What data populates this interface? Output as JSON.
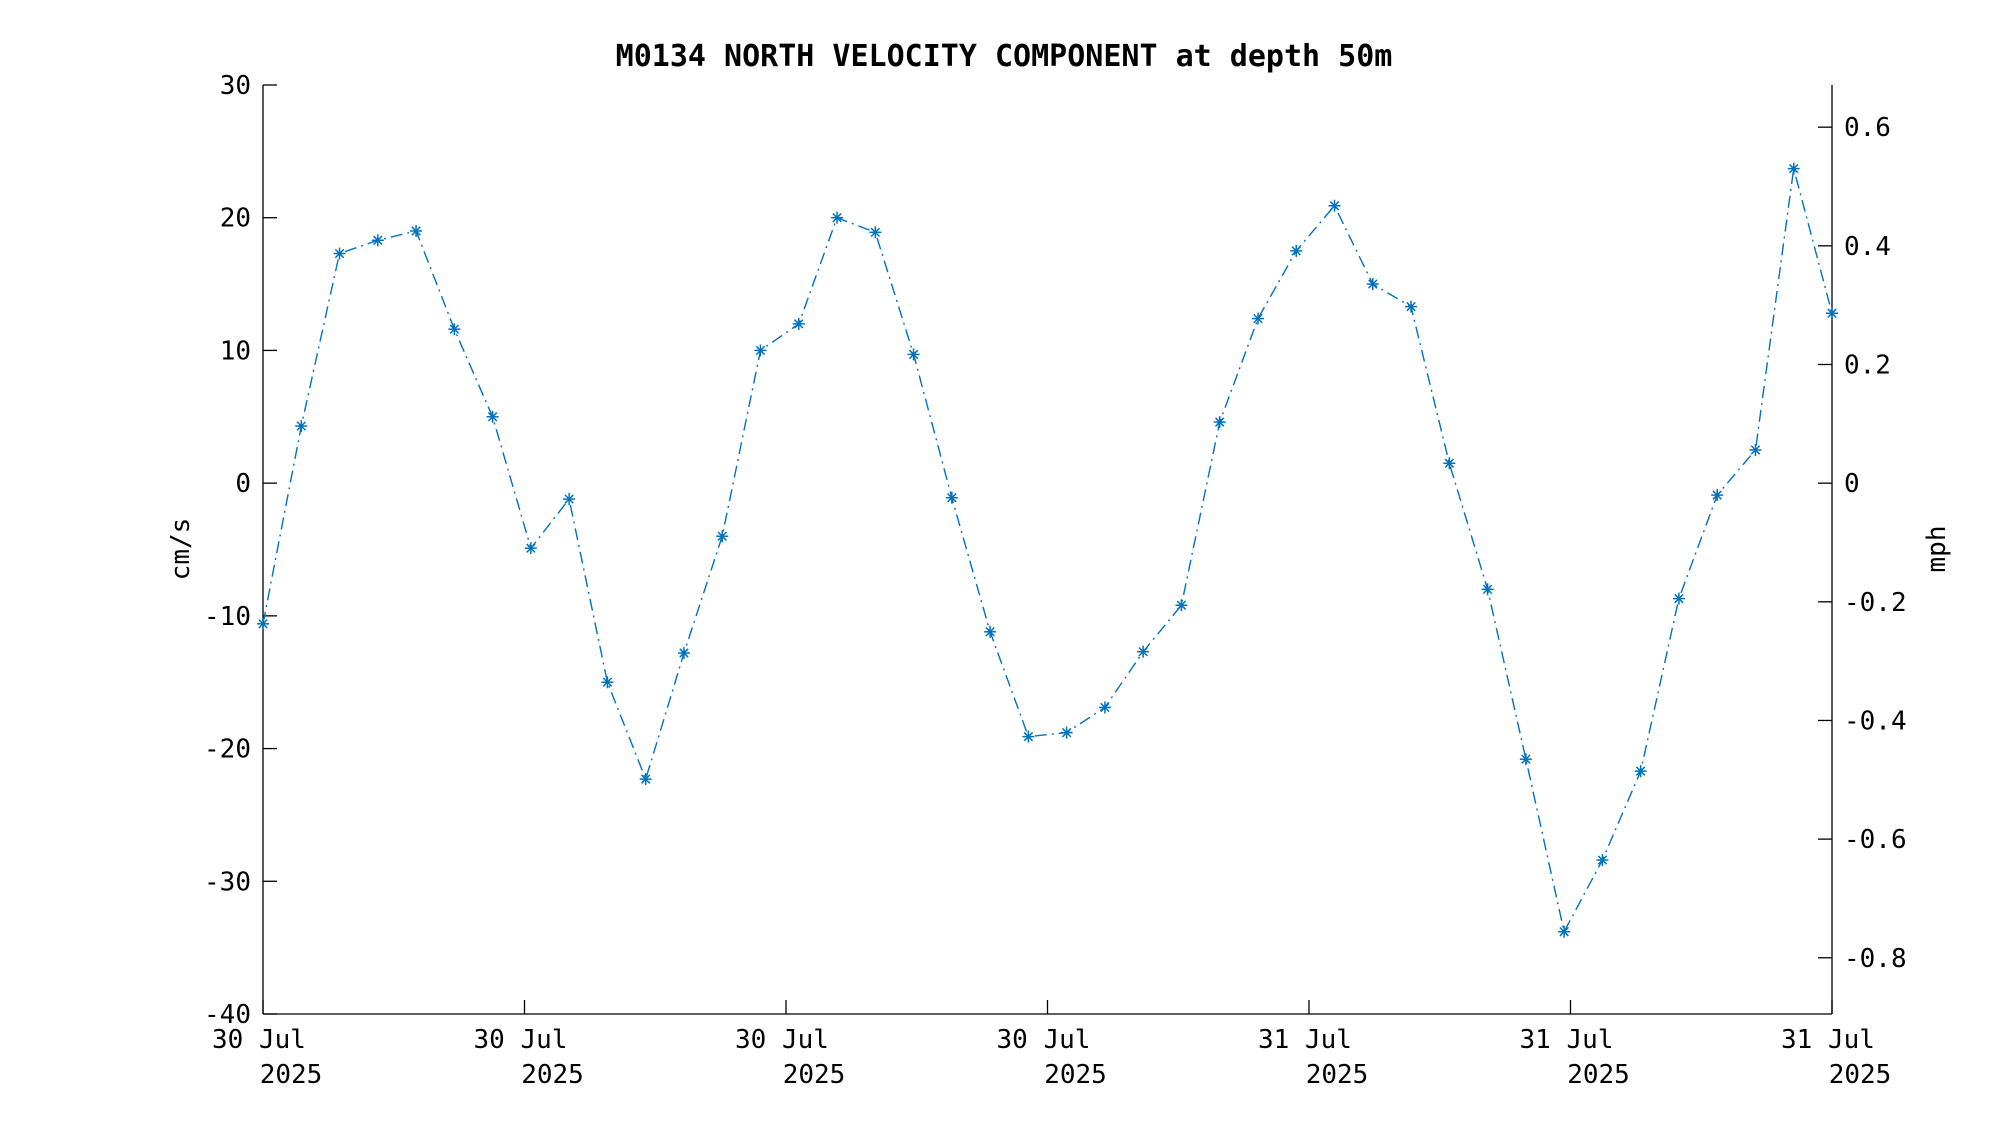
{
  "chart_data": {
    "type": "line",
    "title": "M0134 NORTH VELOCITY COMPONENT at depth 50m",
    "ylabel": "cm/s",
    "y2label": "mph",
    "ylim": [
      -40,
      30
    ],
    "yticks": [
      "30",
      "20",
      "10",
      "0",
      "-10",
      "-20",
      "-30",
      "-40"
    ],
    "y2ticks": [
      "0.6",
      "0.4",
      "0.2",
      "0",
      "-0.2",
      "-0.4",
      "-0.6",
      "-0.8"
    ],
    "xticks": [
      {
        "line1": "30 Jul",
        "line2": "2025"
      },
      {
        "line1": "30 Jul",
        "line2": "2025"
      },
      {
        "line1": "30 Jul",
        "line2": "2025"
      },
      {
        "line1": "30 Jul",
        "line2": "2025"
      },
      {
        "line1": "31 Jul",
        "line2": "2025"
      },
      {
        "line1": "31 Jul",
        "line2": "2025"
      },
      {
        "line1": "31 Jul",
        "line2": "2025"
      }
    ],
    "grid": false,
    "marker": "asterisk",
    "line_style": "dash-dot",
    "series_color": "#0072BD",
    "series": [
      {
        "values": [
          -10.6,
          4.3,
          17.3,
          18.3,
          19.0,
          11.6,
          5.0,
          -4.9,
          -1.2,
          -15.0,
          -22.3,
          -12.8,
          -4.0,
          10.0,
          12.0,
          20.0,
          18.9,
          9.7,
          -1.1,
          -11.2,
          -19.1,
          -18.8,
          -16.9,
          -12.7,
          -9.2,
          4.6,
          12.4,
          17.5,
          20.9,
          15.0,
          13.3,
          1.5,
          -8.0,
          -20.8,
          -33.8,
          -28.4,
          -21.7,
          -8.7,
          -0.9,
          2.5,
          23.7,
          12.8
        ]
      }
    ]
  }
}
